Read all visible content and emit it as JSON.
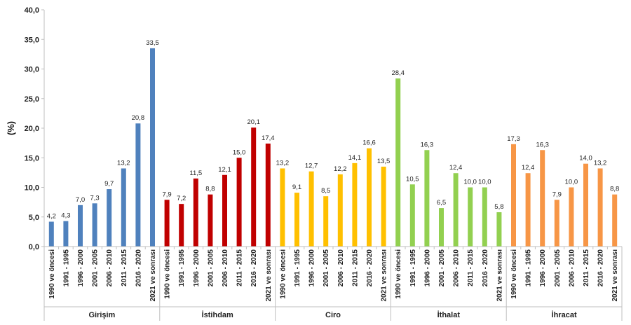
{
  "chart_data": {
    "type": "bar",
    "ylabel": "(%)",
    "ylim": [
      0,
      40
    ],
    "ytick_step": 5,
    "ytick_labels": [
      "0,0",
      "5,0",
      "10,0",
      "15,0",
      "20,0",
      "25,0",
      "30,0",
      "35,0",
      "40,0"
    ],
    "grid": false,
    "legend": "none",
    "categories": [
      "1990 ve öncesi",
      "1991 - 1995",
      "1996 - 2000",
      "2001 - 2005",
      "2006 - 2010",
      "2011 - 2015",
      "2016 - 2020",
      "2021 ve sonrası"
    ],
    "series": [
      {
        "name": "Girişim",
        "color": "#4F81BD",
        "values": [
          4.2,
          4.3,
          7.0,
          7.3,
          9.7,
          13.2,
          20.8,
          33.5
        ],
        "labels": [
          "4,2",
          "4,3",
          "7,0",
          "7,3",
          "9,7",
          "13,2",
          "20,8",
          "33,5"
        ]
      },
      {
        "name": "İstihdam",
        "color": "#C00000",
        "values": [
          7.9,
          7.2,
          11.5,
          8.8,
          12.1,
          15.0,
          20.1,
          17.4
        ],
        "labels": [
          "7,9",
          "7,2",
          "11,5",
          "8,8",
          "12,1",
          "15,0",
          "20,1",
          "17,4"
        ]
      },
      {
        "name": "Ciro",
        "color": "#FFC000",
        "values": [
          13.2,
          9.1,
          12.7,
          8.5,
          12.2,
          14.1,
          16.6,
          13.5
        ],
        "labels": [
          "13,2",
          "9,1",
          "12,7",
          "8,5",
          "12,2",
          "14,1",
          "16,6",
          "13,5"
        ]
      },
      {
        "name": "İthalat",
        "color": "#92D050",
        "values": [
          28.4,
          10.5,
          16.3,
          6.5,
          12.4,
          10.0,
          10.0,
          5.8
        ],
        "labels": [
          "28,4",
          "10,5",
          "16,3",
          "6,5",
          "12,4",
          "10,0",
          "10,0",
          "5,8"
        ]
      },
      {
        "name": "İhracat",
        "color": "#F79646",
        "values": [
          17.3,
          12.4,
          16.3,
          7.9,
          10.0,
          14.0,
          13.2,
          8.8
        ],
        "labels": [
          "17,3",
          "12,4",
          "16,3",
          "7,9",
          "10,0",
          "14,0",
          "13,2",
          "8,8"
        ]
      }
    ]
  }
}
